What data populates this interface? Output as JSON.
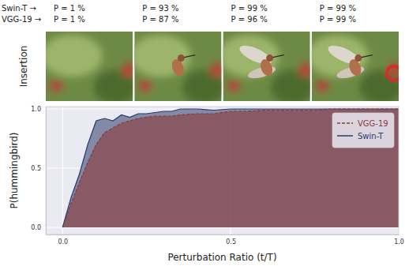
{
  "chart_data": {
    "type": "area",
    "panel_label": "Insertion",
    "row_labels": [
      "Swin-T →",
      "VGG-19 →"
    ],
    "probability_labels": [
      [
        "P = 1 %",
        "P = 93 %",
        "P = 99 %",
        "P = 99 %"
      ],
      [
        "P = 1 %",
        "P = 87 %",
        "P = 96 %",
        "P = 99 %"
      ]
    ],
    "xlabel": "Perturbation Ratio (t/T)",
    "ylabel": "P(hummingbird)",
    "x": [
      0,
      0.025,
      0.05,
      0.075,
      0.1,
      0.125,
      0.15,
      0.175,
      0.2,
      0.225,
      0.25,
      0.275,
      0.3,
      0.325,
      0.35,
      0.4,
      0.45,
      0.5,
      0.55,
      0.6,
      0.65,
      0.7,
      0.75,
      0.8,
      0.85,
      0.9,
      0.95,
      1.0
    ],
    "series": [
      {
        "name": "Swin-T",
        "color": "#2b3a6b",
        "line_style": "solid",
        "values": [
          0,
          0.25,
          0.45,
          0.7,
          0.9,
          0.92,
          0.9,
          0.95,
          0.93,
          0.96,
          0.96,
          0.97,
          0.98,
          0.98,
          1.0,
          1.0,
          0.99,
          1.0,
          1.0,
          1.0,
          1.0,
          1.0,
          1.0,
          1.0,
          1.0,
          1.0,
          1.0,
          1.0
        ]
      },
      {
        "name": "VGG-19",
        "color": "#8b3a3a",
        "line_style": "dashed",
        "values": [
          0,
          0.2,
          0.38,
          0.55,
          0.7,
          0.8,
          0.84,
          0.88,
          0.9,
          0.92,
          0.93,
          0.94,
          0.94,
          0.94,
          0.95,
          0.96,
          0.96,
          0.98,
          0.98,
          0.99,
          0.99,
          0.99,
          0.99,
          1.0,
          1.0,
          1.0,
          1.0,
          1.0
        ]
      }
    ],
    "xlim": [
      -0.05,
      1.0
    ],
    "ylim": [
      -0.06,
      1.02
    ],
    "xticks": [
      {
        "value": 0,
        "label": "0.0"
      },
      {
        "value": 0.5,
        "label": "0.5"
      },
      {
        "value": 1,
        "label": "1.0"
      }
    ],
    "yticks": [
      {
        "value": 0,
        "label": "0.0"
      },
      {
        "value": 0.5,
        "label": "0.5"
      },
      {
        "value": 1,
        "label": "1.0"
      }
    ],
    "grid": true,
    "legend": "upper right"
  }
}
